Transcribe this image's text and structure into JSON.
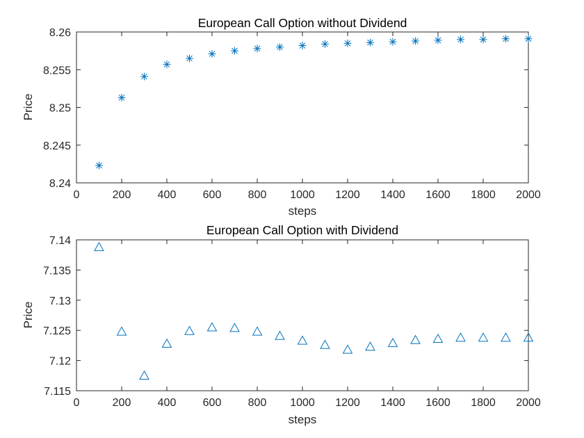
{
  "chart_data": [
    {
      "type": "scatter",
      "title": "European Call Option without Dividend",
      "xlabel": "steps",
      "ylabel": "Price",
      "xlim": [
        0,
        2000
      ],
      "ylim": [
        8.24,
        8.26
      ],
      "xticks": [
        0,
        200,
        400,
        600,
        800,
        1000,
        1200,
        1400,
        1600,
        1800,
        2000
      ],
      "xtick_labels": [
        "0",
        "200",
        "400",
        "600",
        "800",
        "1000",
        "1200",
        "1400",
        "1600",
        "1800",
        "2000"
      ],
      "yticks": [
        8.24,
        8.245,
        8.25,
        8.255,
        8.26
      ],
      "ytick_labels": [
        "8.24",
        "8.245",
        "8.25",
        "8.255",
        "8.26"
      ],
      "marker": "asterisk",
      "color": "#0072BD",
      "grid": false,
      "x": [
        100,
        200,
        300,
        400,
        500,
        600,
        700,
        800,
        900,
        1000,
        1100,
        1200,
        1300,
        1400,
        1500,
        1600,
        1700,
        1800,
        1900,
        2000
      ],
      "y": [
        8.2423,
        8.2513,
        8.2541,
        8.2557,
        8.2565,
        8.2571,
        8.2575,
        8.2578,
        8.258,
        8.2582,
        8.2584,
        8.2585,
        8.2586,
        8.2587,
        8.2588,
        8.2589,
        8.259,
        8.259,
        8.2591,
        8.2591
      ]
    },
    {
      "type": "scatter",
      "title": "European Call Option with Dividend",
      "xlabel": "steps",
      "ylabel": "Price",
      "xlim": [
        0,
        2000
      ],
      "ylim": [
        7.115,
        7.14
      ],
      "xticks": [
        0,
        200,
        400,
        600,
        800,
        1000,
        1200,
        1400,
        1600,
        1800,
        2000
      ],
      "xtick_labels": [
        "0",
        "200",
        "400",
        "600",
        "800",
        "1000",
        "1200",
        "1400",
        "1600",
        "1800",
        "2000"
      ],
      "yticks": [
        7.115,
        7.12,
        7.125,
        7.13,
        7.135,
        7.14
      ],
      "ytick_labels": [
        "7.115",
        "7.12",
        "7.125",
        "7.13",
        "7.135",
        "7.14"
      ],
      "marker": "triangle",
      "color": "#0072BD",
      "grid": false,
      "x": [
        100,
        200,
        300,
        400,
        500,
        600,
        700,
        800,
        900,
        1000,
        1100,
        1200,
        1300,
        1400,
        1500,
        1600,
        1700,
        1800,
        1900,
        2000
      ],
      "y": [
        7.1388,
        7.1248,
        7.1175,
        7.1228,
        7.1249,
        7.1255,
        7.1254,
        7.1248,
        7.1241,
        7.1233,
        7.1226,
        7.1218,
        7.1223,
        7.1229,
        7.1234,
        7.1236,
        7.1238,
        7.1238,
        7.1238,
        7.1238
      ]
    }
  ]
}
